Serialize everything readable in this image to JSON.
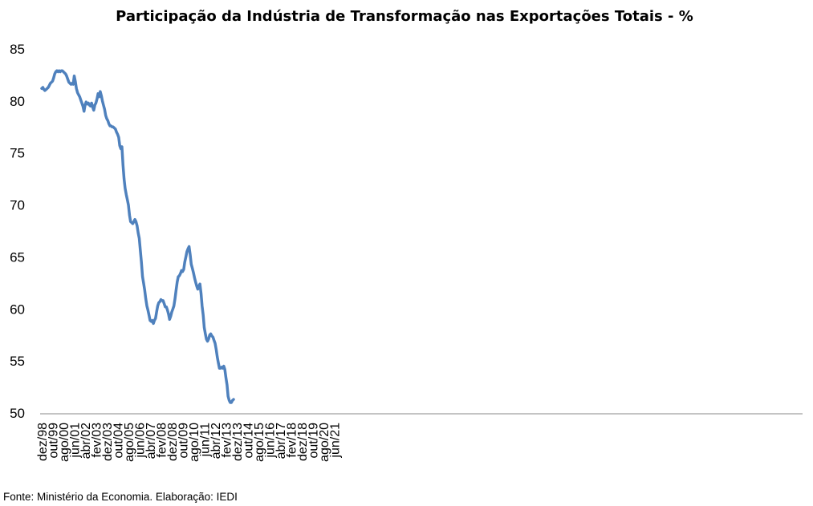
{
  "chart_data": {
    "type": "line",
    "title": "Participação da Indústria de Transformação nas Exportações Totais - %",
    "source": "Fonte: Ministério da Economia. Elaboração: IEDI",
    "ylim": [
      50,
      85
    ],
    "yticks": [
      50,
      55,
      60,
      65,
      70,
      75,
      80,
      85
    ],
    "grid": false,
    "legend": "none",
    "line_color": "#4F81BD",
    "x_tick_labels": [
      "dez/98",
      "out/99",
      "ago/00",
      "jun/01",
      "abr/02",
      "fev/03",
      "dez/03",
      "out/04",
      "ago/05",
      "jun/06",
      "abr/07",
      "fev/08",
      "dez/08",
      "out/09",
      "ago/10",
      "jun/11",
      "abr/12",
      "fev/13",
      "dez/13",
      "out/14",
      "ago/15",
      "jun/16",
      "abr/17",
      "fev/18",
      "dez/18",
      "out/19",
      "ago/20",
      "jun/21"
    ],
    "series": [
      {
        "start": "dez/98",
        "values": [
          81.2,
          81.3,
          81.1,
          81.0,
          81.1,
          81.2,
          81.3,
          81.5,
          81.7,
          81.8,
          81.9,
          82.2,
          82.6,
          82.8,
          82.9,
          82.8,
          82.9,
          82.8,
          82.9,
          82.9,
          82.8,
          82.7,
          82.6,
          82.4,
          82.1,
          81.8,
          81.7,
          81.6,
          81.7,
          81.6,
          82.4,
          81.9,
          81.2,
          80.8,
          80.6,
          80.4,
          80.1,
          79.8,
          79.5,
          79.0,
          79.6,
          79.9,
          79.7,
          79.8,
          79.6,
          79.5,
          79.8,
          79.4,
          79.1,
          79.6,
          79.8,
          80.2,
          80.7,
          80.4,
          80.9,
          80.5,
          80.0,
          79.6,
          79.2,
          78.6,
          78.3,
          78.1,
          77.8,
          77.6,
          77.6,
          77.5,
          77.5,
          77.4,
          77.3,
          77.0,
          76.8,
          76.5,
          75.7,
          75.4,
          75.6,
          73.8,
          72.5,
          71.6,
          71.0,
          70.5,
          70.0,
          69.0,
          68.4,
          68.3,
          68.2,
          68.4,
          68.6,
          68.4,
          68.0,
          67.3,
          66.8,
          65.6,
          64.5,
          63.1,
          62.5,
          61.8,
          61.0,
          60.3,
          59.9,
          59.4,
          58.9,
          58.8,
          58.9,
          58.6,
          58.9,
          59.1,
          59.7,
          60.3,
          60.6,
          60.7,
          60.9,
          60.8,
          60.8,
          60.5,
          60.2,
          60.2,
          59.9,
          59.5,
          59.0,
          59.3,
          59.7,
          60.0,
          60.3,
          61.0,
          61.8,
          62.6,
          63.1,
          63.2,
          63.4,
          63.7,
          63.6,
          63.8,
          64.5,
          65.0,
          65.5,
          65.8,
          66.0,
          65.2,
          64.3,
          63.9,
          63.5,
          63.0,
          62.6,
          62.2,
          61.9,
          62.2,
          62.4,
          61.5,
          60.3,
          59.4,
          58.2,
          57.6,
          57.1,
          56.9,
          57.1,
          57.5,
          57.6,
          57.4,
          57.3,
          57.0,
          56.7,
          56.1,
          55.4,
          54.8,
          54.3,
          54.3,
          54.4,
          54.3,
          54.5,
          54.2,
          53.4,
          52.7,
          51.6,
          51.2,
          51.0,
          51.0,
          51.2,
          51.3
        ]
      }
    ]
  }
}
